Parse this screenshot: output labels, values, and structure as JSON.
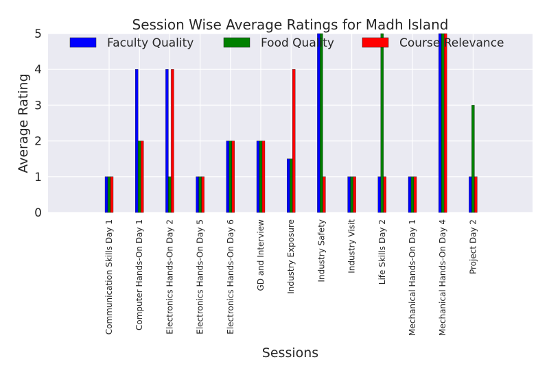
{
  "chart_data": {
    "type": "bar",
    "title": "Session Wise Average Ratings for Madh Island",
    "xlabel": "Sessions",
    "ylabel": "Average Rating",
    "ylim": [
      0,
      5
    ],
    "yticks": [
      "0",
      "1",
      "2",
      "3",
      "4",
      "5"
    ],
    "grid": true,
    "legend_position": "top",
    "categories": [
      "Communication Skills Day 1",
      "Computer Hands-On Day 1",
      "Electronics Hands-On Day 2",
      "Electronics Hands-On Day 5",
      "Electronics Hands-On Day 6",
      "GD and Interview",
      "Industry Exposure",
      "Industry Safety",
      "Industry Visit",
      "Life Skills Day 2",
      "Mechanical Hands-On Day 1",
      "Mechanical Hands-On Day 4",
      "Project Day 2"
    ],
    "series": [
      {
        "name": "Faculty Quality",
        "color": "#0000ff",
        "values": [
          1,
          4,
          4,
          1,
          2,
          2,
          1.5,
          5,
          1,
          1,
          1,
          5,
          1
        ]
      },
      {
        "name": "Food Quality",
        "color": "#008000",
        "values": [
          1,
          2,
          1,
          1,
          2,
          2,
          1.5,
          5,
          1,
          5,
          1,
          5,
          3
        ]
      },
      {
        "name": "Course Relevance",
        "color": "#ff0000",
        "values": [
          1,
          2,
          4,
          1,
          2,
          2,
          4,
          1,
          1,
          1,
          1,
          5,
          1
        ]
      }
    ]
  }
}
